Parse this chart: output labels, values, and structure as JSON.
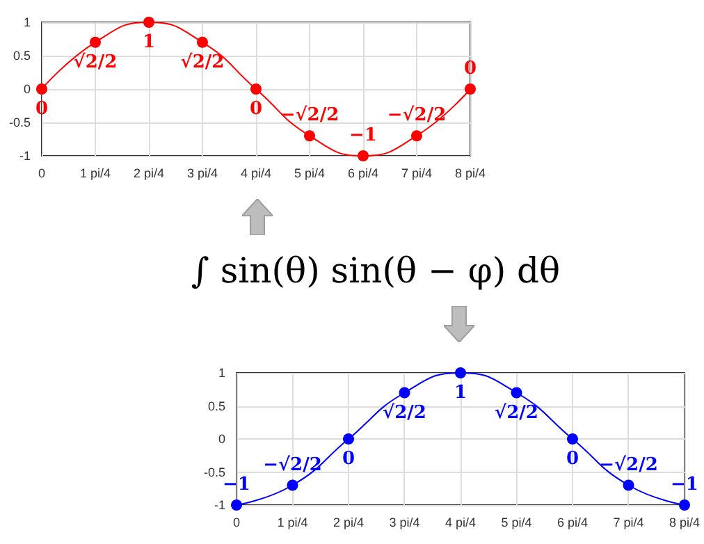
{
  "chart_data": [
    {
      "type": "line",
      "categories": [
        "0",
        "1 pi/4",
        "2 pi/4",
        "3 pi/4",
        "4 pi/4",
        "5 pi/4",
        "6 pi/4",
        "7 pi/4",
        "8 pi/4"
      ],
      "color": "#ff0000",
      "values": [
        0,
        0.7,
        1,
        0.7,
        0,
        -0.7,
        -1,
        -0.7,
        0
      ],
      "value_labels": [
        "0",
        "√2/2",
        "1",
        "√2/2",
        "0",
        "−√2/2",
        "−1",
        "−√2/2",
        "0"
      ],
      "ylim": [
        -1,
        1
      ],
      "yticks": [
        -1,
        -0.5,
        0,
        0.5,
        1
      ],
      "grid": true,
      "marker": "circle",
      "line_style": "solid"
    },
    {
      "type": "other",
      "title": "∫ sin(θ) sin(θ − φ) dθ"
    },
    {
      "type": "line",
      "categories": [
        "0",
        "1 pi/4",
        "2 pi/4",
        "3 pi/4",
        "4 pi/4",
        "5 pi/4",
        "6 pi/4",
        "7 pi/4",
        "8 pi/4"
      ],
      "color": "#0000ff",
      "values": [
        -1,
        -0.7,
        0,
        0.7,
        1,
        0.7,
        0,
        -0.7,
        -1
      ],
      "value_labels": [
        "−1",
        "−√2/2",
        "0",
        "√2/2",
        "1",
        "√2/2",
        "0",
        "−√2/2",
        "−1"
      ],
      "ylim": [
        -1,
        1
      ],
      "yticks": [
        -1,
        -0.5,
        0,
        0.5,
        1
      ],
      "grid": true,
      "marker": "circle",
      "line_style": "solid"
    }
  ]
}
